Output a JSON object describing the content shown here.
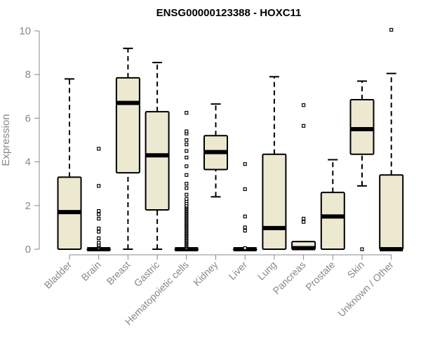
{
  "chart_data": {
    "type": "boxplot",
    "title": "ENSG00000123388 - HOXC11",
    "xlabel": "",
    "ylabel": "Expression",
    "ylim": [
      0,
      10
    ],
    "yticks": [
      0,
      2,
      4,
      6,
      8,
      10
    ],
    "grid": false,
    "box_fill": "#ede8d0",
    "categories": [
      "Bladder",
      "Brain",
      "Breast",
      "Gastric",
      "Hematopoietic cells",
      "Kidney",
      "Liver",
      "Lung",
      "Pancreas",
      "Prostate",
      "Skin",
      "Unknown / Other"
    ],
    "boxes": [
      {
        "category": "Bladder",
        "whisker_low": 0,
        "q1": 0,
        "median": 1.7,
        "q3": 3.3,
        "whisker_high": 7.8,
        "outliers": []
      },
      {
        "category": "Brain",
        "whisker_low": 0,
        "q1": 0,
        "median": 0,
        "q3": 0,
        "whisker_high": 0,
        "outliers": [
          0.05,
          0.1,
          0.15,
          0.2,
          0.3,
          0.5,
          0.8,
          0.95,
          1.4,
          1.6,
          1.75,
          2.9,
          4.6
        ]
      },
      {
        "category": "Breast",
        "whisker_low": 0,
        "q1": 3.5,
        "median": 6.7,
        "q3": 7.85,
        "whisker_high": 9.2,
        "outliers": []
      },
      {
        "category": "Gastric",
        "whisker_low": 0,
        "q1": 1.8,
        "median": 4.3,
        "q3": 6.3,
        "whisker_high": 8.55,
        "outliers": []
      },
      {
        "category": "Hematopoietic cells",
        "whisker_low": 0,
        "q1": 0,
        "median": 0,
        "q3": 0,
        "whisker_high": 0,
        "outliers": [
          0.05,
          0.1,
          0.15,
          0.2,
          0.25,
          0.3,
          0.35,
          0.4,
          0.45,
          0.5,
          0.55,
          0.6,
          0.65,
          0.7,
          0.75,
          0.8,
          0.85,
          0.9,
          0.95,
          1.0,
          1.05,
          1.1,
          1.15,
          1.2,
          1.25,
          1.3,
          1.35,
          1.4,
          1.45,
          1.5,
          1.55,
          1.6,
          1.65,
          1.7,
          1.75,
          1.8,
          1.85,
          1.9,
          1.95,
          2.0,
          2.1,
          2.2,
          2.3,
          2.5,
          2.8,
          3.0,
          3.4,
          3.8,
          4.2,
          4.5,
          4.8,
          5.0,
          5.3,
          5.4,
          6.25
        ]
      },
      {
        "category": "Kidney",
        "whisker_low": 2.4,
        "q1": 3.65,
        "median": 4.45,
        "q3": 5.2,
        "whisker_high": 6.65,
        "outliers": []
      },
      {
        "category": "Liver",
        "whisker_low": 0,
        "q1": 0,
        "median": 0,
        "q3": 0,
        "whisker_high": 0,
        "outliers": [
          0.05,
          0.85,
          1.0,
          1.5,
          2.75,
          3.9
        ]
      },
      {
        "category": "Lung",
        "whisker_low": 0,
        "q1": 0,
        "median": 0.97,
        "q3": 4.35,
        "whisker_high": 7.9,
        "outliers": []
      },
      {
        "category": "Pancreas",
        "whisker_low": 0,
        "q1": 0,
        "median": 0.05,
        "q3": 0.35,
        "whisker_high": 0.35,
        "outliers": [
          1.25,
          1.4,
          5.65,
          6.6
        ]
      },
      {
        "category": "Prostate",
        "whisker_low": 0,
        "q1": 0,
        "median": 1.5,
        "q3": 2.6,
        "whisker_high": 4.1,
        "outliers": []
      },
      {
        "category": "Skin",
        "whisker_low": 2.9,
        "q1": 4.35,
        "median": 5.5,
        "q3": 6.85,
        "whisker_high": 7.7,
        "outliers": [
          0.0
        ]
      },
      {
        "category": "Unknown / Other",
        "whisker_low": 0,
        "q1": 0,
        "median": 0,
        "q3": 3.4,
        "whisker_high": 8.05,
        "outliers": [
          10.05
        ]
      }
    ]
  }
}
